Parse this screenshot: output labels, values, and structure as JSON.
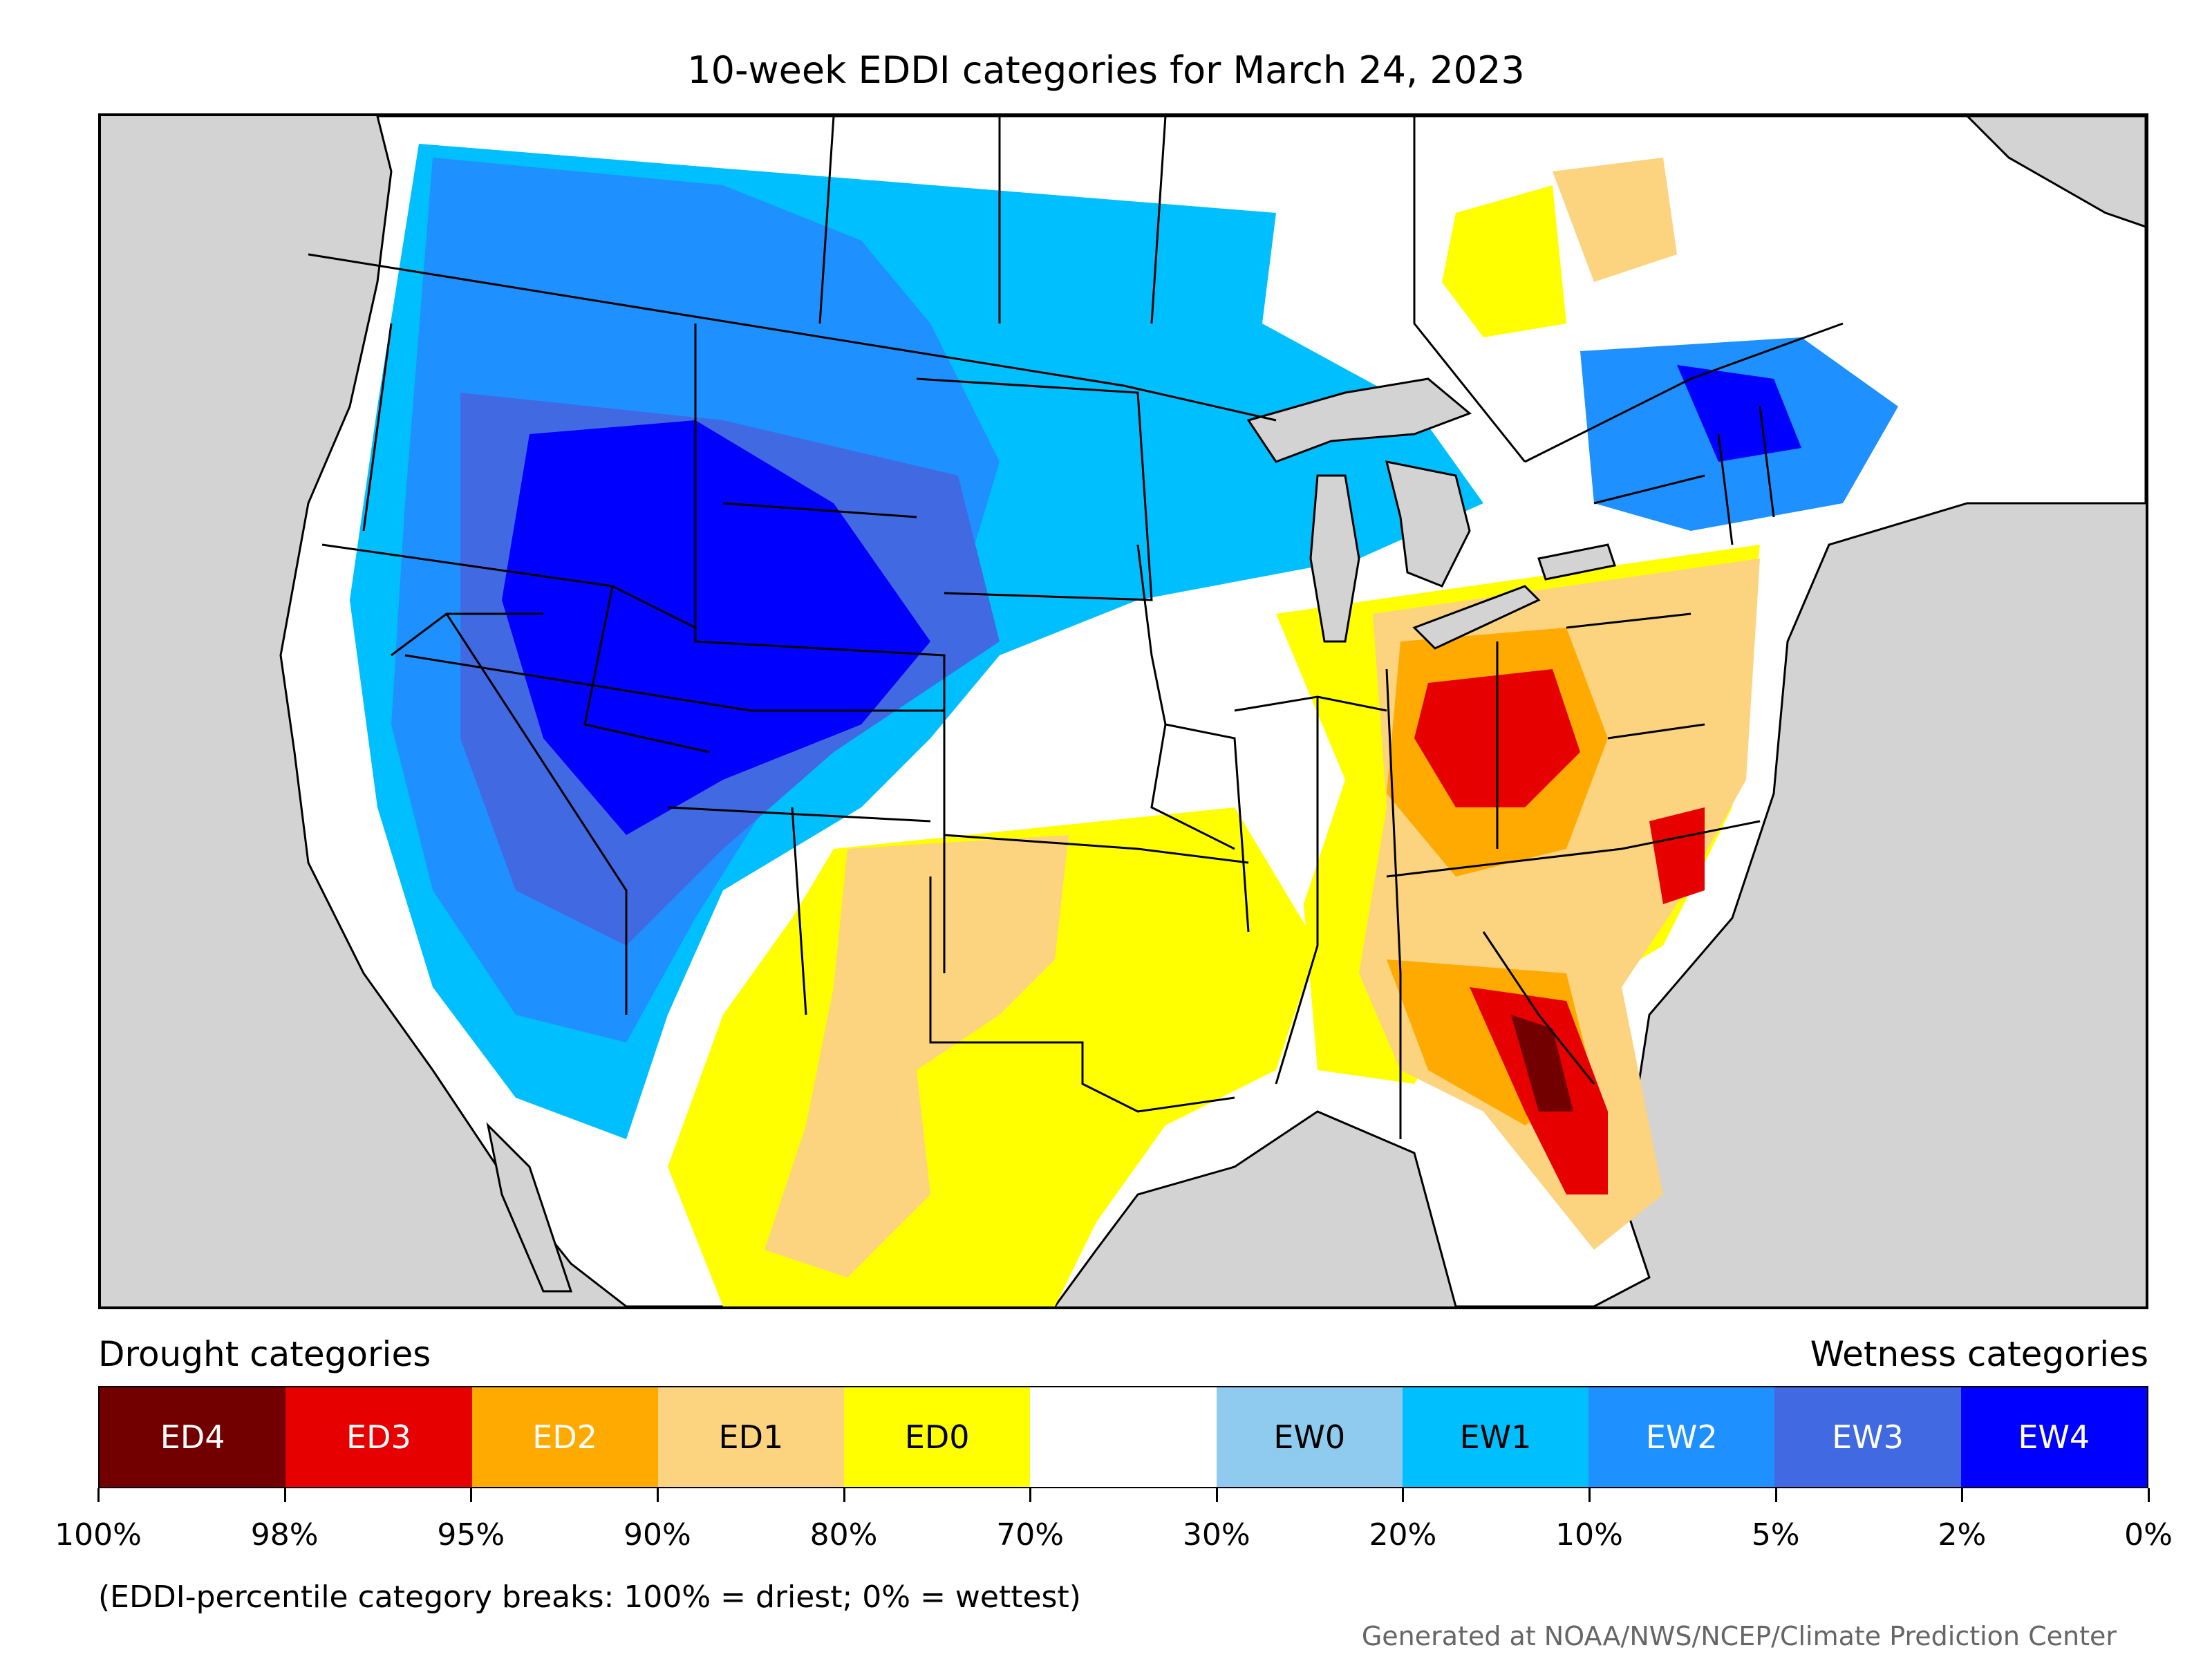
{
  "title": "10-week EDDI categories for March 24, 2023",
  "legend": {
    "drought_heading": "Drought categories",
    "wetness_heading": "Wetness categories",
    "categories": [
      {
        "label": "ED4",
        "color": "#730000",
        "text_color": "#ffffff"
      },
      {
        "label": "ED3",
        "color": "#e60000",
        "text_color": "#ffffff"
      },
      {
        "label": "ED2",
        "color": "#ffaa00",
        "text_color": "#ffffff"
      },
      {
        "label": "ED1",
        "color": "#fcd37f",
        "text_color": "#000000"
      },
      {
        "label": "ED0",
        "color": "#ffff00",
        "text_color": "#000000"
      },
      {
        "label": "",
        "color": "#ffffff",
        "text_color": "#000000"
      },
      {
        "label": "EW0",
        "color": "#8ecbef",
        "text_color": "#000000"
      },
      {
        "label": "EW1",
        "color": "#00bfff",
        "text_color": "#000000"
      },
      {
        "label": "EW2",
        "color": "#1e90ff",
        "text_color": "#ffffff"
      },
      {
        "label": "EW3",
        "color": "#4169e1",
        "text_color": "#ffffff"
      },
      {
        "label": "EW4",
        "color": "#0000ff",
        "text_color": "#ffffff"
      }
    ],
    "tick_labels": [
      "100%",
      "98%",
      "95%",
      "90%",
      "80%",
      "70%",
      "30%",
      "20%",
      "10%",
      "5%",
      "2%",
      "0%"
    ]
  },
  "note": "(EDDI-percentile category breaks: 100% = driest; 0% = wettest)",
  "credit": "Generated at NOAA/NWS/NCEP/Climate Prediction Center",
  "map_colors": {
    "ocean": "#d3d3d3",
    "land": "#ffffff",
    "lakes": "#d3d3d3",
    "borders": "#000000"
  }
}
